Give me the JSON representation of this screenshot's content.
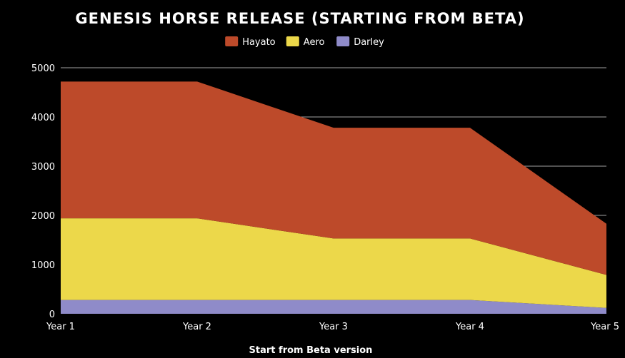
{
  "chart_data": {
    "type": "area",
    "stacked": true,
    "title": "GENESIS HORSE RELEASE (STARTING FROM BETA)",
    "xlabel": "Start from Beta version",
    "ylabel": "",
    "categories": [
      "Year 1",
      "Year 2",
      "Year 3",
      "Year 4",
      "Year 5"
    ],
    "ylim": [
      0,
      5000
    ],
    "yticks": [
      0,
      1000,
      2000,
      3000,
      4000,
      5000
    ],
    "grid": true,
    "legend_position": "top-center",
    "series": [
      {
        "name": "Darley",
        "color": "#8f8bc9",
        "values": [
          280,
          280,
          280,
          280,
          120
        ]
      },
      {
        "name": "Aero",
        "color": "#ecd84a",
        "values": [
          1660,
          1660,
          1250,
          1250,
          670
        ]
      },
      {
        "name": "Hayato",
        "color": "#bd4a2a",
        "values": [
          2780,
          2780,
          2250,
          2250,
          1040
        ]
      }
    ],
    "legend_order": [
      "Hayato",
      "Aero",
      "Darley"
    ]
  }
}
